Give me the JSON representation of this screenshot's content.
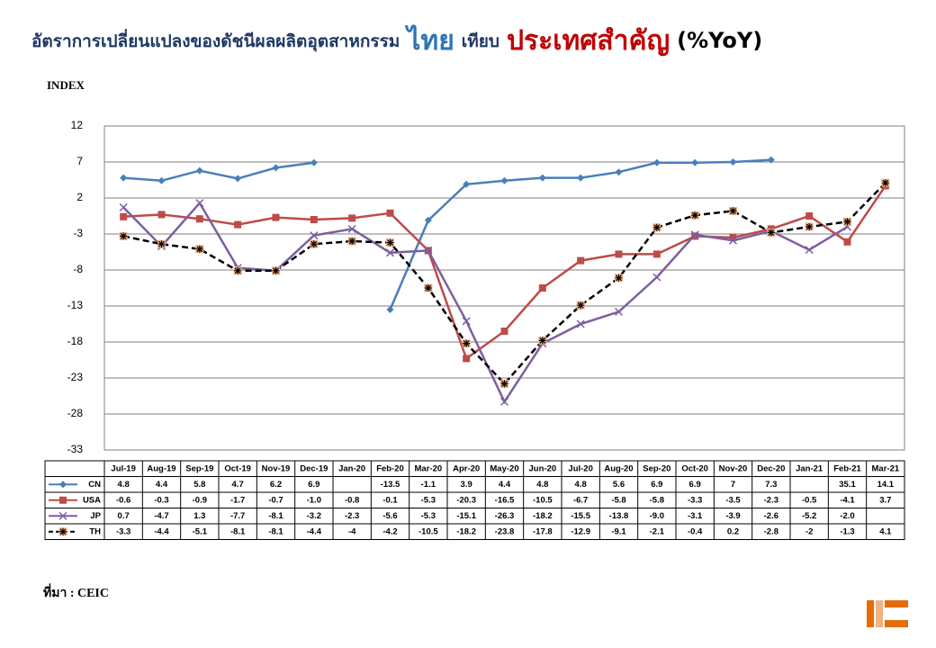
{
  "chart_data": {
    "type": "line",
    "title_parts": [
      {
        "text": "อัตราการเปลี่ยนแปลงของดัชนีผลผลิตอุตสาหกรรม",
        "color": "#1f3864"
      },
      {
        "text": "ไทย",
        "color": "#2e75b6"
      },
      {
        "text": "เทียบ",
        "color": "#1f3864"
      },
      {
        "text": "ประเทศสำคัญ",
        "color": "#c00000"
      },
      {
        "text": "(%YoY)",
        "color": "#000000"
      }
    ],
    "y_label": "INDEX",
    "source": "ที่มา : CEIC",
    "categories": [
      "Jul-19",
      "Aug-19",
      "Sep-19",
      "Oct-19",
      "Nov-19",
      "Dec-19",
      "Jan-20",
      "Feb-20",
      "Mar-20",
      "Apr-20",
      "May-20",
      "Jun-20",
      "Jul-20",
      "Aug-20",
      "Sep-20",
      "Oct-20",
      "Nov-20",
      "Dec-20",
      "Jan-21",
      "Feb-21",
      "Mar-21"
    ],
    "series": [
      {
        "name": "CN",
        "color": "#4a7ebb",
        "marker": "diamond",
        "dashed": false,
        "values": [
          4.8,
          4.4,
          5.8,
          4.7,
          6.2,
          6.9,
          null,
          -13.5,
          -1.1,
          3.9,
          4.4,
          4.8,
          4.8,
          5.6,
          6.9,
          6.9,
          7,
          7.3,
          null,
          35.1,
          14.1
        ],
        "value_labels": [
          "4.8",
          "4.4",
          "5.8",
          "4.7",
          "6.2",
          "6.9",
          null,
          "-13.5",
          "-1.1",
          "3.9",
          "4.4",
          "4.8",
          "4.8",
          "5.6",
          "6.9",
          "6.9",
          "7",
          "7.3",
          null,
          "35.1",
          "14.1"
        ]
      },
      {
        "name": "USA",
        "color": "#be4b48",
        "marker": "square",
        "dashed": false,
        "values": [
          -0.6,
          -0.3,
          -0.9,
          -1.7,
          -0.7,
          -1.0,
          -0.8,
          -0.1,
          -5.3,
          -20.3,
          -16.5,
          -10.5,
          -6.7,
          -5.8,
          -5.8,
          -3.3,
          -3.5,
          -2.3,
          -0.5,
          -4.1,
          3.7
        ],
        "value_labels": [
          "-0.6",
          "-0.3",
          "-0.9",
          "-1.7",
          "-0.7",
          "-1.0",
          "-0.8",
          "-0.1",
          "-5.3",
          "-20.3",
          "-16.5",
          "-10.5",
          "-6.7",
          "-5.8",
          "-5.8",
          "-3.3",
          "-3.5",
          "-2.3",
          "-0.5",
          "-4.1",
          "3.7"
        ]
      },
      {
        "name": "JP",
        "color": "#7d5fa0",
        "marker": "cross",
        "dashed": false,
        "values": [
          0.7,
          -4.7,
          1.3,
          -7.7,
          -8.1,
          -3.2,
          -2.3,
          -5.6,
          -5.3,
          -15.1,
          -26.3,
          -18.2,
          -15.5,
          -13.8,
          -9.0,
          -3.1,
          -3.9,
          -2.6,
          -5.2,
          -2.0,
          null
        ],
        "value_labels": [
          "0.7",
          "-4.7",
          "1.3",
          "-7.7",
          "-8.1",
          "-3.2",
          "-2.3",
          "-5.6",
          "-5.3",
          "-15.1",
          "-26.3",
          "-18.2",
          "-15.5",
          "-13.8",
          "-9.0",
          "-3.1",
          "-3.9",
          "-2.6",
          "-5.2",
          "-2.0",
          null
        ]
      },
      {
        "name": "TH",
        "color": "#000000",
        "marker": "star",
        "dashed": true,
        "values": [
          -3.3,
          -4.4,
          -5.1,
          -8.1,
          -8.1,
          -4.4,
          -4,
          -4.2,
          -10.5,
          -18.2,
          -23.8,
          -17.8,
          -12.9,
          -9.1,
          -2.1,
          -0.4,
          0.2,
          -2.8,
          -2,
          -1.3,
          4.1
        ],
        "value_labels": [
          "-3.3",
          "-4.4",
          "-5.1",
          "-8.1",
          "-8.1",
          "-4.4",
          "-4",
          "-4.2",
          "-10.5",
          "-18.2",
          "-23.8",
          "-17.8",
          "-12.9",
          "-9.1",
          "-2.1",
          "-0.4",
          "0.2",
          "-2.8",
          "-2",
          "-1.3",
          "4.1"
        ]
      }
    ],
    "ylim": [
      -33,
      12
    ],
    "yticks": [
      -33,
      -28,
      -23,
      -18,
      -13,
      -8,
      -3,
      2,
      7,
      12
    ],
    "grid": true
  }
}
